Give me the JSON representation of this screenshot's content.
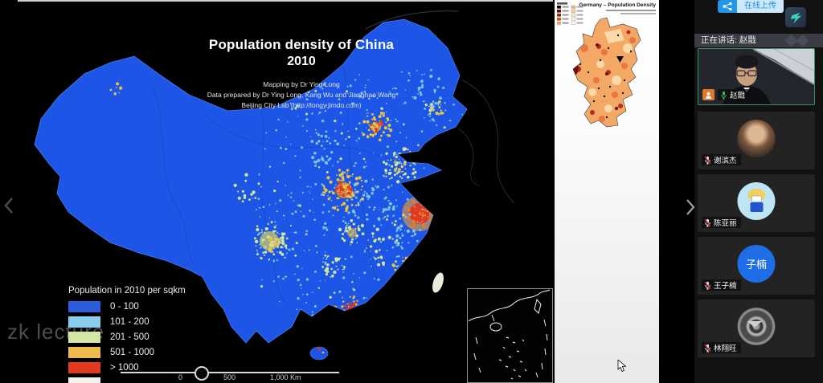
{
  "screen_share": {
    "china_map": {
      "title": "Population density of China",
      "year": "2010",
      "credit_line1": "Mapping by Dr Ying Long",
      "credit_line2": "Data prepared by Dr Ying Long, Kang Wu and Jianghao Wang",
      "credit_line3": "Beijing City Lab (http://longy.jimdo.com)",
      "legend": {
        "title": "Population in 2010 per sqkm",
        "items": [
          {
            "label": "0 - 100",
            "color": "#2b5cdb"
          },
          {
            "label": "101 - 200",
            "color": "#8accec"
          },
          {
            "label": "201 - 500",
            "color": "#d3e6a4"
          },
          {
            "label": "501 - 1000",
            "color": "#ecba4e"
          },
          {
            "label": "> 1000",
            "color": "#e23a1f"
          },
          {
            "label": "",
            "color": "#f2f2ea"
          }
        ]
      },
      "scale": {
        "tick0": "0",
        "tick500": "500",
        "tick1000": "1,000 Km"
      },
      "watermark": "zk lecture"
    },
    "germany_map": {
      "title": "Germany – Population Density"
    }
  },
  "meeting": {
    "upload_button_label": "在线上传",
    "speaking_banner": "正在讲话: 赵戬",
    "participants": [
      {
        "name": "赵戬"
      },
      {
        "name": "谢滨杰"
      },
      {
        "name": "陈亚丽"
      },
      {
        "name": "王子楠",
        "avatar_text": "子楠"
      },
      {
        "name": "林翔旺"
      }
    ]
  }
}
